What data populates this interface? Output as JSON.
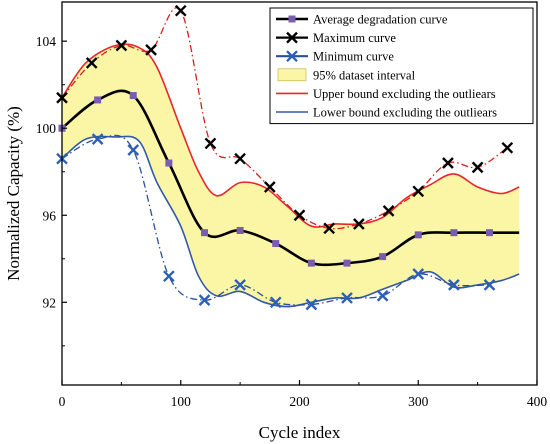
{
  "colors": {
    "average": "#000000",
    "average_marker": "#7a5cb0",
    "maximum": "#d4201f",
    "maximum_marker": "#000000",
    "minimum": "#2c4f9c",
    "minimum_marker": "#2c5fb8",
    "interval_fill": "#fbf5a6",
    "upper_bound": "#e8262a",
    "lower_bound": "#3358a8"
  },
  "chart_data": {
    "type": "line",
    "xlabel": "Cycle index",
    "ylabel": "Normalized Capacity (%)",
    "xlim": [
      0,
      400
    ],
    "ylim": [
      88.2,
      105.8
    ],
    "x_ticks": [
      0,
      100,
      200,
      300,
      400
    ],
    "y_ticks": [
      92,
      96,
      100,
      104
    ],
    "grid": false,
    "legend_placement": "top-right",
    "legend": [
      "Average degradation curve",
      "Maximum curve",
      "Minimum curve",
      "95% dataset interval",
      "Upper bound excluding the outliears",
      "Lower bound excluding the outliears"
    ],
    "series": [
      {
        "name": "Average degradation curve",
        "style": "line-square",
        "x": [
          0,
          30,
          60,
          90,
          120,
          150,
          180,
          210,
          240,
          270,
          300,
          330,
          360,
          385
        ],
        "y": [
          100.0,
          101.3,
          101.5,
          98.4,
          95.2,
          95.3,
          94.7,
          93.8,
          93.8,
          94.1,
          95.1,
          95.2,
          95.2,
          95.2
        ],
        "markers_x": [
          0,
          30,
          60,
          90,
          120,
          150,
          180,
          210,
          240,
          270,
          300,
          330,
          360
        ],
        "markers_y": [
          100.0,
          101.3,
          101.5,
          98.4,
          95.2,
          95.3,
          94.7,
          93.8,
          93.8,
          94.1,
          95.1,
          95.2,
          95.2
        ]
      },
      {
        "name": "Maximum curve",
        "style": "dashdot-x",
        "x": [
          0,
          25,
          50,
          75,
          100,
          125,
          150,
          175,
          200,
          225,
          250,
          275,
          300,
          325,
          350,
          375
        ],
        "y": [
          101.4,
          103.0,
          103.8,
          103.6,
          105.4,
          99.3,
          98.6,
          97.3,
          96.0,
          95.4,
          95.6,
          96.2,
          97.1,
          98.4,
          98.2,
          99.1
        ]
      },
      {
        "name": "Minimum curve",
        "style": "dashdot-x",
        "x": [
          0,
          30,
          60,
          90,
          120,
          150,
          180,
          210,
          240,
          270,
          300,
          330,
          360
        ],
        "y": [
          98.6,
          99.5,
          99.0,
          93.2,
          92.1,
          92.8,
          92.0,
          91.9,
          92.2,
          92.3,
          93.3,
          92.8,
          92.8
        ]
      },
      {
        "name": "95% dataset interval",
        "style": "band",
        "x": [
          0,
          20,
          45,
          65,
          80,
          100,
          115,
          130,
          150,
          170,
          190,
          210,
          230,
          250,
          270,
          290,
          310,
          330,
          350,
          370,
          385
        ],
        "upper": [
          101.4,
          103.0,
          103.8,
          103.7,
          102.8,
          100.0,
          98.0,
          96.9,
          97.5,
          97.3,
          96.4,
          95.5,
          95.6,
          95.6,
          95.9,
          96.8,
          97.4,
          97.9,
          97.3,
          97.0,
          97.3
        ],
        "lower": [
          98.6,
          99.5,
          99.6,
          99.4,
          97.5,
          95.5,
          93.2,
          92.3,
          92.5,
          92.0,
          91.8,
          92.0,
          92.2,
          92.2,
          92.6,
          93.0,
          93.4,
          92.7,
          92.8,
          93.0,
          93.3
        ]
      },
      {
        "name": "Upper bound excluding the outliears",
        "style": "line",
        "x": [
          0,
          20,
          45,
          65,
          80,
          100,
          115,
          130,
          150,
          170,
          190,
          210,
          230,
          250,
          270,
          290,
          310,
          330,
          350,
          370,
          385
        ],
        "y": [
          101.4,
          103.0,
          103.8,
          103.7,
          102.8,
          100.0,
          98.0,
          96.9,
          97.5,
          97.3,
          96.4,
          95.5,
          95.6,
          95.6,
          95.9,
          96.8,
          97.4,
          97.9,
          97.3,
          97.0,
          97.3
        ]
      },
      {
        "name": "Lower bound excluding the outliears",
        "style": "line",
        "x": [
          0,
          20,
          45,
          65,
          80,
          100,
          115,
          130,
          150,
          170,
          190,
          210,
          230,
          250,
          270,
          290,
          310,
          330,
          350,
          370,
          385
        ],
        "y": [
          98.6,
          99.5,
          99.6,
          99.4,
          97.5,
          95.5,
          93.2,
          92.3,
          92.5,
          92.0,
          91.8,
          92.0,
          92.2,
          92.2,
          92.6,
          93.0,
          93.4,
          92.7,
          92.8,
          93.0,
          93.3
        ]
      }
    ]
  }
}
